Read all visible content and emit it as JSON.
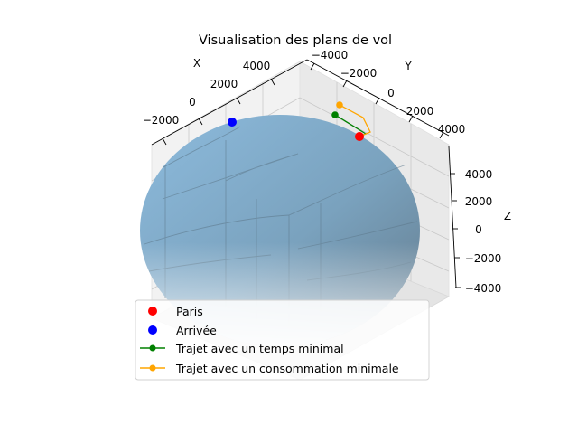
{
  "chart_data": {
    "type": "scatter",
    "title": "Visualisation des plans de vol",
    "xlabel": "X",
    "ylabel": "Y",
    "zlabel": "Z",
    "x_ticks": [
      "4000",
      "2000",
      "0",
      "−2000"
    ],
    "y_ticks": [
      "−4000",
      "−2000",
      "0",
      "2000",
      "4000"
    ],
    "z_ticks": [
      "4000",
      "2000",
      "0",
      "−2000",
      "−4000"
    ],
    "legend_position": "lower center",
    "series": [
      {
        "name": "Paris",
        "kind": "scatter",
        "color": "#ff0000"
      },
      {
        "name": "Arrivée",
        "kind": "scatter",
        "color": "#0000ff"
      },
      {
        "name": "Trajet avec un temps minimal",
        "kind": "line",
        "color": "#008000"
      },
      {
        "name": "Trajet avec un consommation minimale",
        "kind": "line",
        "color": "#ffa500"
      }
    ],
    "surface": {
      "shape": "sphere",
      "color": "#7bafd4"
    }
  }
}
